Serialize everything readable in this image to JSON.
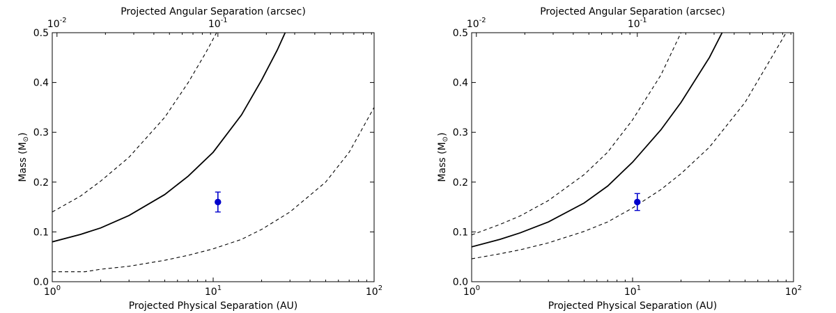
{
  "chart_data": [
    {
      "type": "line",
      "xlabel": "Projected Physical Separation (AU)",
      "ylabel": "Mass (M",
      "ylabel_sub": "⊙",
      "ylabel_close": ")",
      "top_xlabel": "Projected Angular Separation (arcsec)",
      "xscale": "log",
      "xlim": [
        1,
        100
      ],
      "ylim": [
        0.0,
        0.5
      ],
      "x_ticks": [
        {
          "base": "10",
          "exp": "0"
        },
        {
          "base": "10",
          "exp": "1"
        },
        {
          "base": "10",
          "exp": "2"
        }
      ],
      "y_ticks": [
        "0.0",
        "0.1",
        "0.2",
        "0.3",
        "0.4",
        "0.5"
      ],
      "top_ticks": [
        {
          "base": "10",
          "exp": "-2",
          "x": 1.07
        },
        {
          "base": "10",
          "exp": "-1",
          "x": 10.7
        }
      ],
      "series": [
        {
          "style": "solid",
          "color": "#000000",
          "x": [
            1,
            1.5,
            2,
            3,
            5,
            7,
            10,
            15,
            20,
            25,
            28
          ],
          "y": [
            0.08,
            0.095,
            0.108,
            0.133,
            0.175,
            0.212,
            0.26,
            0.335,
            0.405,
            0.465,
            0.5
          ]
        },
        {
          "style": "dashed",
          "color": "#000000",
          "x": [
            1,
            1.5,
            2,
            3,
            5,
            7,
            9,
            10.5
          ],
          "y": [
            0.14,
            0.172,
            0.202,
            0.25,
            0.33,
            0.4,
            0.46,
            0.5
          ]
        },
        {
          "style": "dashed",
          "color": "#000000",
          "x": [
            1,
            1.6,
            2,
            3,
            5,
            7,
            10,
            15,
            20,
            30,
            50,
            70,
            100
          ],
          "y": [
            0.02,
            0.02,
            0.025,
            0.031,
            0.043,
            0.053,
            0.066,
            0.085,
            0.105,
            0.14,
            0.2,
            0.26,
            0.35
          ]
        }
      ],
      "points": [
        {
          "x": 10.7,
          "y": 0.16,
          "yerr": 0.02,
          "color": "#0000cc"
        }
      ]
    },
    {
      "type": "line",
      "xlabel": "Projected Physical Separation (AU)",
      "ylabel": "Mass (M",
      "ylabel_sub": "⊙",
      "ylabel_close": ")",
      "top_xlabel": "Projected Angular Separation (arcsec)",
      "xscale": "log",
      "xlim": [
        1,
        100
      ],
      "ylim": [
        0.0,
        0.5
      ],
      "x_ticks": [
        {
          "base": "10",
          "exp": "0"
        },
        {
          "base": "10",
          "exp": "1"
        },
        {
          "base": "10",
          "exp": "2"
        }
      ],
      "y_ticks": [
        "0.0",
        "0.1",
        "0.2",
        "0.3",
        "0.4",
        "0.5"
      ],
      "top_ticks": [
        {
          "base": "10",
          "exp": "-2",
          "x": 1.07
        },
        {
          "base": "10",
          "exp": "-1",
          "x": 10.7
        }
      ],
      "series": [
        {
          "style": "solid",
          "color": "#000000",
          "x": [
            1,
            1.5,
            2,
            3,
            5,
            7,
            10,
            15,
            20,
            30,
            36
          ],
          "y": [
            0.07,
            0.085,
            0.098,
            0.12,
            0.158,
            0.192,
            0.24,
            0.305,
            0.36,
            0.45,
            0.5
          ]
        },
        {
          "style": "dashed",
          "color": "#000000",
          "x": [
            1,
            1.5,
            2,
            3,
            5,
            7,
            10,
            15,
            20
          ],
          "y": [
            0.094,
            0.115,
            0.132,
            0.163,
            0.215,
            0.26,
            0.325,
            0.415,
            0.5
          ]
        },
        {
          "style": "dashed",
          "color": "#000000",
          "x": [
            1,
            1.5,
            2,
            3,
            5,
            7,
            10,
            15,
            20,
            30,
            50,
            70,
            90
          ],
          "y": [
            0.046,
            0.056,
            0.064,
            0.078,
            0.101,
            0.12,
            0.148,
            0.185,
            0.217,
            0.27,
            0.36,
            0.44,
            0.5
          ]
        }
      ],
      "points": [
        {
          "x": 10.7,
          "y": 0.16,
          "yerr": 0.017,
          "color": "#0000cc"
        }
      ]
    }
  ]
}
